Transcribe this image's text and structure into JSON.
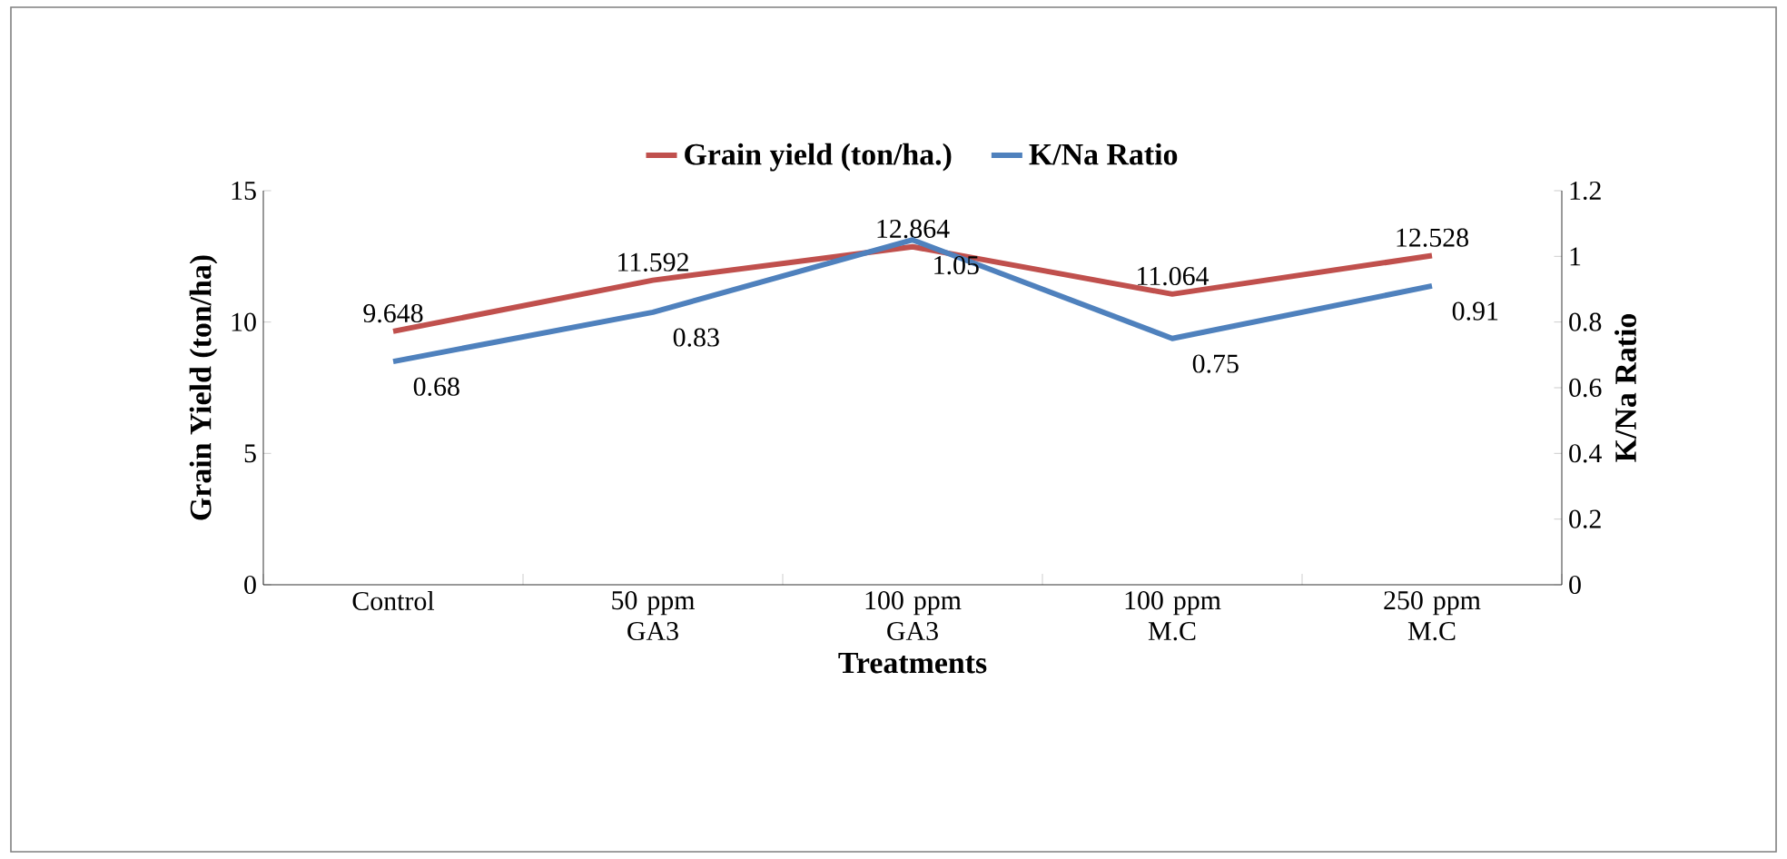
{
  "chart_data": {
    "type": "line",
    "xlabel": "Treatments",
    "ylabel": "Grain Yield (ton/ha)",
    "y2label": "K/Na  Ratio",
    "categories": [
      "Control",
      "50 ppm GA3",
      "100 ppm GA3",
      "100 ppm M.C",
      "250 ppm M.C"
    ],
    "series": [
      {
        "name": "Grain yield (ton/ha.)",
        "color": "#c0504d",
        "values": [
          9.648,
          11.592,
          12.864,
          11.064,
          12.528
        ]
      },
      {
        "name": "K/Na Ratio",
        "color": "#4f81bd",
        "axis": "y2",
        "values": [
          0.68,
          0.83,
          1.05,
          0.75,
          0.91
        ]
      }
    ],
    "ylim": [
      0,
      15
    ],
    "yticks": [
      0,
      5,
      10,
      15
    ],
    "y2lim": [
      0,
      1.2
    ],
    "y2ticks": [
      0,
      0.2,
      0.4,
      0.6,
      0.8,
      1,
      1.2
    ],
    "data_labels": true,
    "legend": "top",
    "grid": false
  }
}
